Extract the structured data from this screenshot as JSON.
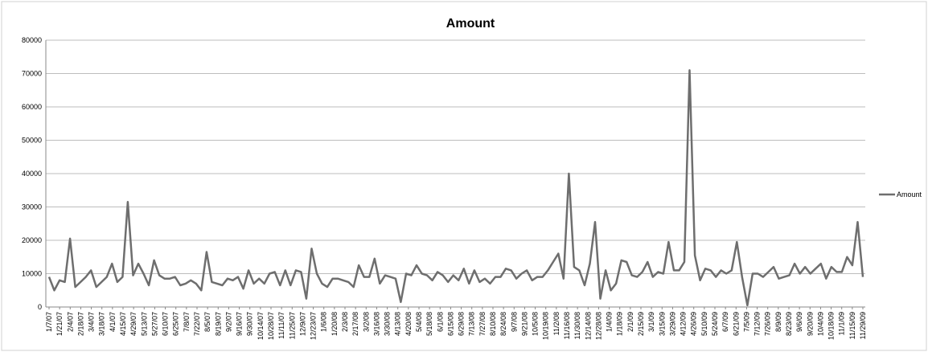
{
  "chart_data": {
    "type": "line",
    "title": "Amount",
    "xlabel": "",
    "ylabel": "",
    "ylim": [
      0,
      80000
    ],
    "yticks": [
      0,
      10000,
      20000,
      30000,
      40000,
      50000,
      60000,
      70000,
      80000
    ],
    "grid": true,
    "legend": "right",
    "series": [
      {
        "name": "Amount",
        "color": "#6e6e6e",
        "values": [
          9000,
          5000,
          8000,
          7500,
          20500,
          6000,
          7500,
          9000,
          11000,
          6000,
          7500,
          9000,
          13000,
          7500,
          9000,
          31500,
          9500,
          13000,
          10000,
          6500,
          14000,
          9500,
          8500,
          8500,
          9000,
          6500,
          7000,
          8000,
          7000,
          5000,
          16500,
          7500,
          7000,
          6500,
          8500,
          8000,
          9000,
          5500,
          11000,
          7000,
          8500,
          7000,
          10000,
          10500,
          6500,
          11000,
          6500,
          11000,
          10500,
          2500,
          17500,
          10000,
          7000,
          6000,
          8500,
          8500,
          8000,
          7500,
          6000,
          12500,
          9000,
          9000,
          14500,
          7000,
          9500,
          9000,
          8500,
          1500,
          10000,
          9500,
          12500,
          10000,
          9500,
          8000,
          10500,
          9500,
          7500,
          9500,
          8000,
          11500,
          7000,
          11000,
          7500,
          8500,
          7000,
          9000,
          9000,
          11500,
          11000,
          8500,
          10000,
          11000,
          8000,
          9000,
          9000,
          11000,
          13500,
          16000,
          8500,
          40000,
          12000,
          11000,
          6500,
          13000,
          25500,
          2500,
          11000,
          5000,
          7000,
          14000,
          13500,
          9500,
          9000,
          10500,
          13500,
          9000,
          10500,
          10000,
          19500,
          11000,
          11000,
          13500,
          71000,
          15500,
          8000,
          11500,
          11000,
          9000,
          11000,
          10000,
          11000,
          19500,
          9000,
          500,
          10000,
          10000,
          9000,
          10500,
          12000,
          8500,
          9000,
          9500,
          13000,
          10000,
          12000,
          10000,
          11500,
          13000,
          8500,
          12000,
          10500,
          10500,
          15000,
          12500,
          25500,
          9000
        ]
      }
    ],
    "x_tick_labels": [
      "1/7/07",
      "1/21/07",
      "2/4/07",
      "2/18/07",
      "3/4/07",
      "3/18/07",
      "4/1/07",
      "4/15/07",
      "4/29/07",
      "5/13/07",
      "5/27/07",
      "6/10/07",
      "6/25/07",
      "7/8/07",
      "7/22/07",
      "8/5/07",
      "8/19/07",
      "9/2/07",
      "9/16/07",
      "9/30/07",
      "10/14/07",
      "10/28/07",
      "11/11/07",
      "11/25/07",
      "12/9/07",
      "12/23/07",
      "1/6/08",
      "1/20/08",
      "2/3/08",
      "2/17/08",
      "3/2/08",
      "3/16/08",
      "3/30/08",
      "4/13/08",
      "4/20/08",
      "5/4/08",
      "5/18/08",
      "6/1/08",
      "6/15/08",
      "6/29/08",
      "7/13/08",
      "7/27/08",
      "8/10/08",
      "8/24/08",
      "9/7/08",
      "9/21/08",
      "10/5/08",
      "10/19/08",
      "11/2/08",
      "11/16/08",
      "11/30/08",
      "12/14/08",
      "12/28/08",
      "1/4/09",
      "1/18/09",
      "2/1/09",
      "2/15/09",
      "3/1/09",
      "3/15/09",
      "3/29/09",
      "4/12/09",
      "4/26/09",
      "5/10/09",
      "5/24/09",
      "6/7/09",
      "6/21/09",
      "7/5/09",
      "7/12/09",
      "7/26/09",
      "8/9/09",
      "8/23/09",
      "9/6/09",
      "9/20/09",
      "10/4/09",
      "10/18/09",
      "11/1/09",
      "11/15/09",
      "11/29/09"
    ]
  }
}
